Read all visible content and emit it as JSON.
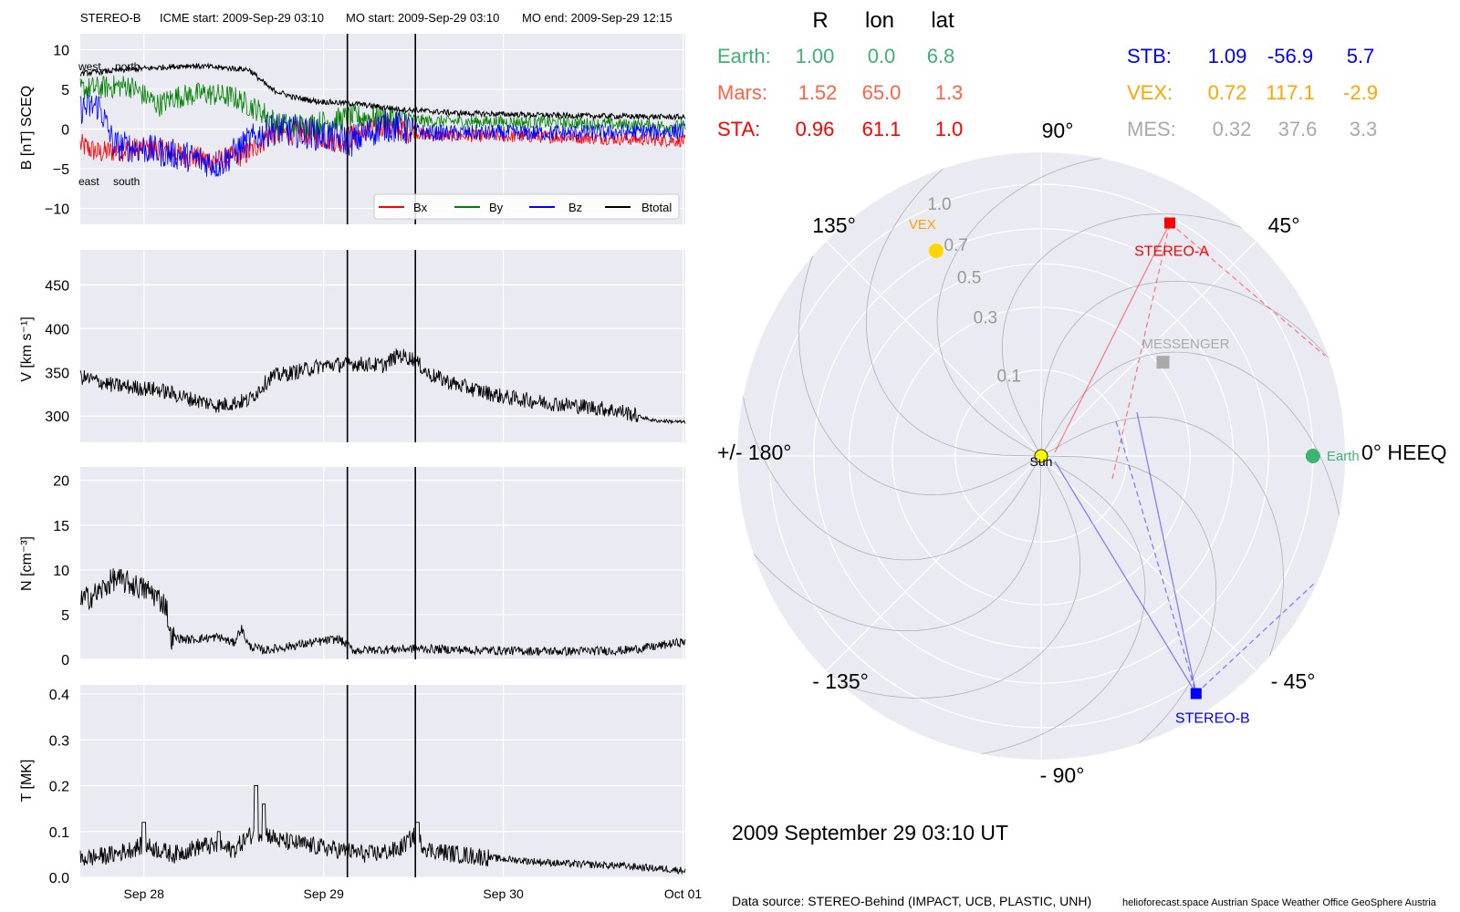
{
  "header": {
    "spacecraft": "STEREO-B",
    "icme_start": "ICME start: 2009-Sep-29 03:10",
    "mo_start": "MO start: 2009-Sep-29 03:10",
    "mo_end": "MO end: 2009-Sep-29 12:15"
  },
  "panels": {
    "b": {
      "ylabel": "B [nT] SCEQ",
      "yticks": [
        "10",
        "5",
        "0",
        "−5",
        "−10"
      ],
      "ytick_values": [
        10,
        5,
        0,
        -5,
        -10
      ],
      "ylim": [
        -12,
        12
      ],
      "annotations": {
        "west": "west",
        "north": "north",
        "east": "east",
        "south": "south"
      },
      "legend": [
        "Bx",
        "By",
        "Bz",
        "Btotal"
      ]
    },
    "v": {
      "ylabel": "V [km s⁻¹]",
      "yticks": [
        "450",
        "400",
        "350",
        "300"
      ],
      "ytick_values": [
        450,
        400,
        350,
        300
      ],
      "ylim": [
        270,
        490
      ]
    },
    "n": {
      "ylabel": "N [cm⁻³]",
      "yticks": [
        "20",
        "15",
        "10",
        "5",
        "0"
      ],
      "ytick_values": [
        20,
        15,
        10,
        5,
        0
      ],
      "ylim": [
        0,
        21.5
      ]
    },
    "t": {
      "ylabel": "T [MK]",
      "yticks": [
        "0.4",
        "0.3",
        "0.2",
        "0.1",
        "0.0"
      ],
      "ytick_values": [
        0.4,
        0.3,
        0.2,
        0.1,
        0.0
      ],
      "ylim": [
        0,
        0.42
      ]
    }
  },
  "xaxis": {
    "ticks": [
      "Sep 28",
      "Sep 29",
      "Sep 30",
      "Oct 01"
    ],
    "tick_hours": [
      24,
      48,
      72,
      96
    ],
    "range_hours": [
      15.5,
      96.3
    ],
    "event_lines_hours": [
      51.17,
      60.25
    ]
  },
  "colors": {
    "bx": "#ff0000",
    "by": "#008000",
    "bz": "#0000ff",
    "btotal": "#000000",
    "panel_bg": "#eaeaf2",
    "earth": "#3cb371",
    "mars": "#ff6347",
    "sta": "#ff0000",
    "stb": "#0000ff",
    "vex": "#ffa500",
    "mes": "#a9a9a9",
    "sun": "#ffff00"
  },
  "positions_table": {
    "headers": [
      "R",
      "lon",
      "lat"
    ],
    "rows": [
      {
        "name": "Earth:",
        "r": "1.00",
        "lon": "0.0",
        "lat": "6.8"
      },
      {
        "name": "Mars:",
        "r": "1.52",
        "lon": "65.0",
        "lat": "1.3"
      },
      {
        "name": "STA:",
        "r": "0.96",
        "lon": "61.1",
        "lat": "1.0"
      },
      {
        "name": "STB:",
        "r": "1.09",
        "lon": "-56.9",
        "lat": "5.7"
      },
      {
        "name": "VEX:",
        "r": "0.72",
        "lon": "117.1",
        "lat": "-2.9"
      },
      {
        "name": "MES:",
        "r": "0.32",
        "lon": "37.6",
        "lat": "3.3"
      }
    ]
  },
  "polar": {
    "angle_labels": {
      "a90": "90°",
      "a45": "45°",
      "a135": "135°",
      "a0": "0° HEEQ",
      "a180": "+/- 180°",
      "am45": "- 45°",
      "am135": "- 135°",
      "am90": "- 90°"
    },
    "radial_labels": [
      "0.1",
      "0.3",
      "0.5",
      "0.7",
      "1.0"
    ],
    "radial_values": [
      0.1,
      0.3,
      0.5,
      0.7,
      1.0
    ],
    "bodies": {
      "sun": {
        "label": "Sun",
        "r": 0,
        "lon": 0
      },
      "earth": {
        "label": "Earth",
        "r": 1.0,
        "lon": 0.0
      },
      "sta": {
        "label": "STEREO-A",
        "r": 0.96,
        "lon": 61.1
      },
      "stb": {
        "label": "STEREO-B",
        "r": 1.09,
        "lon": -56.9
      },
      "vex": {
        "label": "VEX",
        "r": 0.72,
        "lon": 117.1
      },
      "mes": {
        "label": "MESSENGER",
        "r": 0.32,
        "lon": 37.6
      }
    }
  },
  "footer": {
    "date": "2009 September 29  03:10 UT",
    "source": "Data source: STEREO-Behind (IMPACT, UCB, PLASTIC, UNH)",
    "credits": "helioforecast.space   Austrian Space Weather Office   GeoSphere Austria"
  }
}
